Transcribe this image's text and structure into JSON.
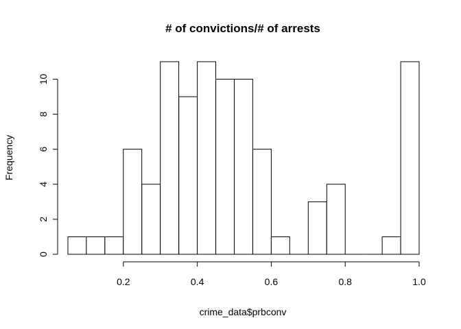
{
  "chart_data": {
    "type": "bar",
    "title": "# of convictions/# of arrests",
    "xlabel": "crime_data$prbconv",
    "ylabel": "Frequency",
    "bins": [
      {
        "start": 0.05,
        "end": 0.1,
        "count": 1
      },
      {
        "start": 0.1,
        "end": 0.15,
        "count": 1
      },
      {
        "start": 0.15,
        "end": 0.2,
        "count": 1
      },
      {
        "start": 0.2,
        "end": 0.25,
        "count": 6
      },
      {
        "start": 0.25,
        "end": 0.3,
        "count": 4
      },
      {
        "start": 0.3,
        "end": 0.35,
        "count": 11
      },
      {
        "start": 0.35,
        "end": 0.4,
        "count": 9
      },
      {
        "start": 0.4,
        "end": 0.45,
        "count": 11
      },
      {
        "start": 0.45,
        "end": 0.5,
        "count": 10
      },
      {
        "start": 0.5,
        "end": 0.55,
        "count": 10
      },
      {
        "start": 0.55,
        "end": 0.6,
        "count": 6
      },
      {
        "start": 0.6,
        "end": 0.65,
        "count": 1
      },
      {
        "start": 0.65,
        "end": 0.7,
        "count": 0
      },
      {
        "start": 0.7,
        "end": 0.75,
        "count": 3
      },
      {
        "start": 0.75,
        "end": 0.8,
        "count": 4
      },
      {
        "start": 0.8,
        "end": 0.85,
        "count": 0
      },
      {
        "start": 0.85,
        "end": 0.9,
        "count": 0
      },
      {
        "start": 0.9,
        "end": 0.95,
        "count": 1
      },
      {
        "start": 0.95,
        "end": 1.0,
        "count": 11
      }
    ],
    "xlim": [
      0.05,
      1.0
    ],
    "ylim": [
      0,
      11
    ],
    "xticks": [
      "0.2",
      "0.4",
      "0.6",
      "0.8",
      "1.0"
    ],
    "yticks": [
      "0",
      "2",
      "4",
      "6",
      "8",
      "10"
    ],
    "grid": false,
    "legend": "none"
  }
}
